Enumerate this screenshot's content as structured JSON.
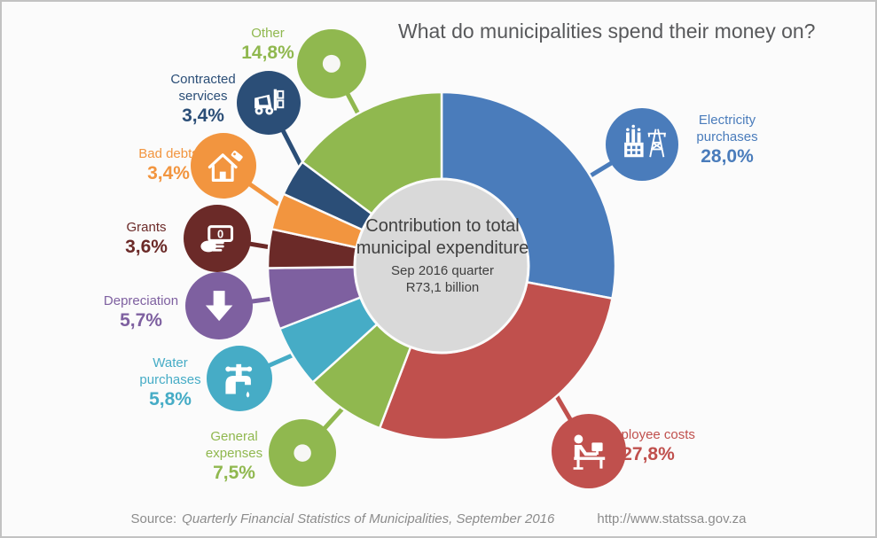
{
  "chart_data": {
    "type": "pie",
    "title": "What do municipalities spend their money on?",
    "center_label": "Contribution to total municipal expenditure",
    "period": "Sep 2016 quarter",
    "total_value": "R73,1 billion",
    "unit": "%",
    "legend_position": "callouts-around-donut",
    "slices": [
      {
        "label": "Electricity purchases",
        "value": 28.0,
        "display": "28,0%",
        "color": "#4A7CBB",
        "icon": "power-station"
      },
      {
        "label": "Employee costs",
        "value": 27.8,
        "display": "27,8%",
        "color": "#C0504D",
        "icon": "employee-at-desk"
      },
      {
        "label": "General expenses",
        "value": 7.5,
        "display": "7,5%",
        "color": "#90B84F",
        "icon": "donut"
      },
      {
        "label": "Water purchases",
        "value": 5.8,
        "display": "5,8%",
        "color": "#46ACC6",
        "icon": "water-tap"
      },
      {
        "label": "Depreciation",
        "value": 5.7,
        "display": "5,7%",
        "color": "#7E60A0",
        "icon": "down-arrow"
      },
      {
        "label": "Grants",
        "value": 3.6,
        "display": "3,6%",
        "color": "#6B2A28",
        "icon": "hand-with-money"
      },
      {
        "label": "Bad debts",
        "value": 3.4,
        "display": "3,4%",
        "color": "#F2953F",
        "icon": "house-with-tag"
      },
      {
        "label": "Contracted services",
        "value": 3.4,
        "display": "3,4%",
        "color": "#2B4E77",
        "icon": "forklift"
      },
      {
        "label": "Other",
        "value": 14.8,
        "display": "14,8%",
        "color": "#90B84F",
        "icon": "donut"
      }
    ]
  },
  "footer": {
    "source_prefix": "Source:",
    "source": "Quarterly Financial Statistics of Municipalities, September 2016",
    "url": "http://www.statssa.gov.za"
  },
  "colors": {
    "center_circle": "#D9D9D9",
    "slice_gap": "#FBFBFB",
    "title_text": "#58595B",
    "source_text": "#8C8C8C",
    "background": "#FBFBFB"
  }
}
